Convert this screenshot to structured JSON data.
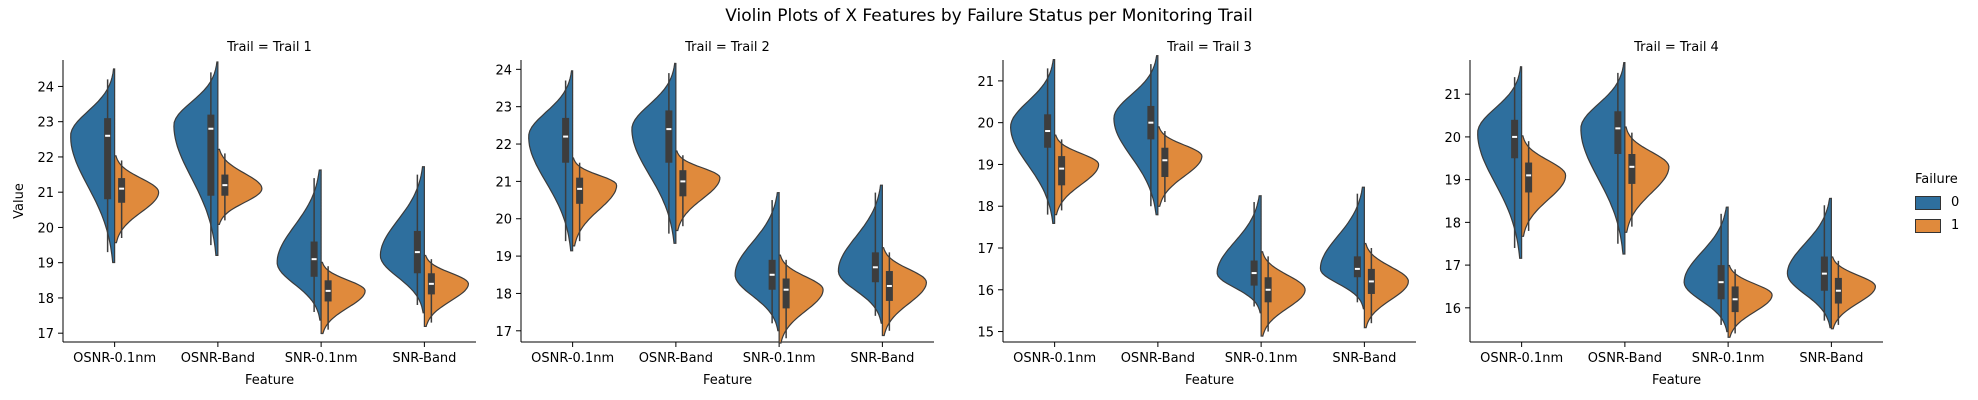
{
  "figure": {
    "title": "Violin Plots of X Features by Failure Status per Monitoring Trail",
    "legend": {
      "title": "Failure",
      "items": [
        {
          "label": "0",
          "color": "#2e6f9e"
        },
        {
          "label": "1",
          "color": "#e08a3c"
        }
      ]
    }
  },
  "chart_data": [
    {
      "type": "violin",
      "title": "Trail = Trail 1",
      "xlabel": "Feature",
      "ylabel": "Value",
      "categories": [
        "OSNR-0.1nm",
        "OSNR-Band",
        "SNR-0.1nm",
        "SNR-Band"
      ],
      "ylim": [
        16.75,
        24.75
      ],
      "yticks": [
        17,
        18,
        19,
        20,
        21,
        22,
        23,
        24
      ],
      "split_by": "Failure",
      "series": [
        {
          "name": "0",
          "color": "#2e6f9e",
          "values": [
            {
              "category": "OSNR-0.1nm",
              "min": 19.3,
              "q1": 20.8,
              "median": 22.6,
              "q3": 23.1,
              "max": 24.2,
              "mode": 22.6
            },
            {
              "category": "OSNR-Band",
              "min": 19.5,
              "q1": 20.9,
              "median": 22.8,
              "q3": 23.2,
              "max": 24.4,
              "mode": 22.9
            },
            {
              "category": "SNR-0.1nm",
              "min": 17.6,
              "q1": 18.6,
              "median": 19.1,
              "q3": 19.6,
              "max": 21.4,
              "mode": 19.0
            },
            {
              "category": "SNR-Band",
              "min": 17.8,
              "q1": 18.7,
              "median": 19.3,
              "q3": 19.9,
              "max": 21.5,
              "mode": 19.2
            }
          ]
        },
        {
          "name": "1",
          "color": "#e08a3c",
          "values": [
            {
              "category": "OSNR-0.1nm",
              "min": 19.7,
              "q1": 20.7,
              "median": 21.1,
              "q3": 21.4,
              "max": 21.9,
              "mode": 21.0
            },
            {
              "category": "OSNR-Band",
              "min": 20.2,
              "q1": 20.9,
              "median": 21.2,
              "q3": 21.5,
              "max": 22.1,
              "mode": 21.1
            },
            {
              "category": "SNR-0.1nm",
              "min": 17.1,
              "q1": 17.9,
              "median": 18.2,
              "q3": 18.5,
              "max": 18.9,
              "mode": 18.2
            },
            {
              "category": "SNR-Band",
              "min": 17.3,
              "q1": 18.1,
              "median": 18.4,
              "q3": 18.7,
              "max": 19.1,
              "mode": 18.4
            }
          ]
        }
      ]
    },
    {
      "type": "violin",
      "title": "Trail = Trail 2",
      "xlabel": "Feature",
      "ylabel": "",
      "categories": [
        "OSNR-0.1nm",
        "OSNR-Band",
        "SNR-0.1nm",
        "SNR-Band"
      ],
      "ylim": [
        16.7,
        24.25
      ],
      "yticks": [
        17,
        18,
        19,
        20,
        21,
        22,
        23,
        24
      ],
      "split_by": "Failure",
      "series": [
        {
          "name": "0",
          "color": "#2e6f9e",
          "values": [
            {
              "category": "OSNR-0.1nm",
              "min": 19.4,
              "q1": 21.5,
              "median": 22.2,
              "q3": 22.7,
              "max": 23.7,
              "mode": 22.2
            },
            {
              "category": "OSNR-Band",
              "min": 19.6,
              "q1": 21.5,
              "median": 22.4,
              "q3": 22.9,
              "max": 23.9,
              "mode": 22.4
            },
            {
              "category": "SNR-0.1nm",
              "min": 17.2,
              "q1": 18.1,
              "median": 18.5,
              "q3": 18.9,
              "max": 20.5,
              "mode": 18.5
            },
            {
              "category": "SNR-Band",
              "min": 17.4,
              "q1": 18.3,
              "median": 18.7,
              "q3": 19.1,
              "max": 20.7,
              "mode": 18.6
            }
          ]
        },
        {
          "name": "1",
          "color": "#e08a3c",
          "values": [
            {
              "category": "OSNR-0.1nm",
              "min": 19.4,
              "q1": 20.4,
              "median": 20.8,
              "q3": 21.1,
              "max": 21.5,
              "mode": 20.9
            },
            {
              "category": "OSNR-Band",
              "min": 19.8,
              "q1": 20.6,
              "median": 21.0,
              "q3": 21.3,
              "max": 21.7,
              "mode": 21.1
            },
            {
              "category": "SNR-0.1nm",
              "min": 16.8,
              "q1": 17.6,
              "median": 18.1,
              "q3": 18.4,
              "max": 18.9,
              "mode": 18.1
            },
            {
              "category": "SNR-Band",
              "min": 17.0,
              "q1": 17.8,
              "median": 18.2,
              "q3": 18.6,
              "max": 19.1,
              "mode": 18.3
            }
          ]
        }
      ]
    },
    {
      "type": "violin",
      "title": "Trail = Trail 3",
      "xlabel": "Feature",
      "ylabel": "",
      "categories": [
        "OSNR-0.1nm",
        "OSNR-Band",
        "SNR-0.1nm",
        "SNR-Band"
      ],
      "ylim": [
        14.75,
        21.5
      ],
      "yticks": [
        15,
        16,
        17,
        18,
        19,
        20,
        21
      ],
      "split_by": "Failure",
      "series": [
        {
          "name": "0",
          "color": "#2e6f9e",
          "values": [
            {
              "category": "OSNR-0.1nm",
              "min": 17.8,
              "q1": 19.4,
              "median": 19.8,
              "q3": 20.2,
              "max": 21.3,
              "mode": 19.9
            },
            {
              "category": "OSNR-Band",
              "min": 18.0,
              "q1": 19.6,
              "median": 20.0,
              "q3": 20.4,
              "max": 21.4,
              "mode": 20.1
            },
            {
              "category": "SNR-0.1nm",
              "min": 15.6,
              "q1": 16.1,
              "median": 16.4,
              "q3": 16.7,
              "max": 18.1,
              "mode": 16.4
            },
            {
              "category": "SNR-Band",
              "min": 15.7,
              "q1": 16.3,
              "median": 16.5,
              "q3": 16.8,
              "max": 18.3,
              "mode": 16.5
            }
          ]
        },
        {
          "name": "1",
          "color": "#e08a3c",
          "values": [
            {
              "category": "OSNR-0.1nm",
              "min": 17.9,
              "q1": 18.5,
              "median": 18.9,
              "q3": 19.2,
              "max": 19.6,
              "mode": 19.0
            },
            {
              "category": "OSNR-Band",
              "min": 18.1,
              "q1": 18.7,
              "median": 19.1,
              "q3": 19.4,
              "max": 19.8,
              "mode": 19.2
            },
            {
              "category": "SNR-0.1nm",
              "min": 15.0,
              "q1": 15.7,
              "median": 16.0,
              "q3": 16.3,
              "max": 16.8,
              "mode": 16.0
            },
            {
              "category": "SNR-Band",
              "min": 15.2,
              "q1": 15.9,
              "median": 16.2,
              "q3": 16.5,
              "max": 17.0,
              "mode": 16.2
            }
          ]
        }
      ]
    },
    {
      "type": "violin",
      "title": "Trail = Trail 4",
      "xlabel": "Feature",
      "ylabel": "",
      "categories": [
        "OSNR-0.1nm",
        "OSNR-Band",
        "SNR-0.1nm",
        "SNR-Band"
      ],
      "ylim": [
        15.2,
        21.8
      ],
      "yticks": [
        16,
        17,
        18,
        19,
        20,
        21
      ],
      "split_by": "Failure",
      "series": [
        {
          "name": "0",
          "color": "#2e6f9e",
          "values": [
            {
              "category": "OSNR-0.1nm",
              "min": 17.4,
              "q1": 19.5,
              "median": 20.0,
              "q3": 20.4,
              "max": 21.4,
              "mode": 20.1
            },
            {
              "category": "OSNR-Band",
              "min": 17.5,
              "q1": 19.6,
              "median": 20.2,
              "q3": 20.6,
              "max": 21.5,
              "mode": 20.2
            },
            {
              "category": "SNR-0.1nm",
              "min": 15.6,
              "q1": 16.2,
              "median": 16.6,
              "q3": 17.0,
              "max": 18.2,
              "mode": 16.6
            },
            {
              "category": "SNR-Band",
              "min": 15.7,
              "q1": 16.4,
              "median": 16.8,
              "q3": 17.2,
              "max": 18.4,
              "mode": 16.8
            }
          ]
        },
        {
          "name": "1",
          "color": "#e08a3c",
          "values": [
            {
              "category": "OSNR-0.1nm",
              "min": 17.8,
              "q1": 18.7,
              "median": 19.1,
              "q3": 19.4,
              "max": 19.9,
              "mode": 19.1
            },
            {
              "category": "OSNR-Band",
              "min": 17.9,
              "q1": 18.9,
              "median": 19.3,
              "q3": 19.6,
              "max": 20.1,
              "mode": 19.3
            },
            {
              "category": "SNR-0.1nm",
              "min": 15.4,
              "q1": 15.9,
              "median": 16.2,
              "q3": 16.5,
              "max": 16.9,
              "mode": 16.3
            },
            {
              "category": "SNR-Band",
              "min": 15.6,
              "q1": 16.1,
              "median": 16.4,
              "q3": 16.7,
              "max": 17.1,
              "mode": 16.5
            }
          ]
        }
      ]
    }
  ]
}
